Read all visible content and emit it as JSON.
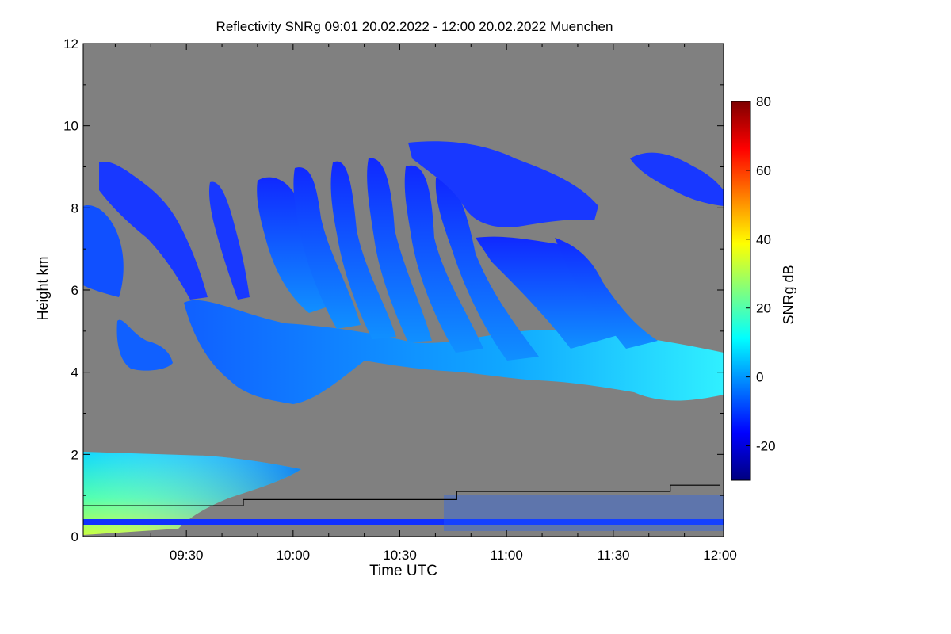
{
  "chart_data": {
    "type": "heatmap",
    "title": "Reflectivity SNRg   09:01 20.02.2022 - 12:00 20.02.2022 Muenchen",
    "xlabel": "Time UTC",
    "ylabel": "Height km",
    "colorbar_label": "SNRg dB",
    "xlim": [
      "09:01",
      "12:01"
    ],
    "ylim": [
      0,
      12
    ],
    "x_ticks": [
      "09:30",
      "10:00",
      "10:30",
      "11:00",
      "11:30",
      "12:00"
    ],
    "y_ticks": [
      0,
      2,
      4,
      6,
      8,
      10,
      12
    ],
    "colorbar_range": [
      -30,
      80
    ],
    "colorbar_ticks": [
      80,
      60,
      40,
      20,
      0,
      -20
    ],
    "background_color": "#808080",
    "colormap": [
      "#00007f",
      "#0000ff",
      "#007fff",
      "#00ffff",
      "#7fff7f",
      "#ffff00",
      "#ff7f00",
      "#ff0000",
      "#7f0000"
    ],
    "regions": [
      {
        "name": "boundary-layer echo",
        "x": [
          "09:01",
          "10:05"
        ],
        "height": [
          0,
          2.1
        ],
        "snr_db": [
          0,
          40
        ]
      },
      {
        "name": "lower cloud layer",
        "x": [
          "09:30",
          "12:00"
        ],
        "height": [
          3.3,
          6.2
        ],
        "snr_db": [
          -25,
          10
        ]
      },
      {
        "name": "fall streaks",
        "x": [
          "09:55",
          "11:40"
        ],
        "height": [
          3.5,
          9.2
        ],
        "snr_db": [
          -25,
          5
        ]
      },
      {
        "name": "upper cloud",
        "x": [
          "11:30",
          "12:00"
        ],
        "height": [
          7.5,
          9.5
        ],
        "snr_db": [
          -25,
          -10
        ]
      },
      {
        "name": "near-surface band",
        "x": [
          "09:01",
          "12:00"
        ],
        "height": [
          0.2,
          0.4
        ],
        "snr_db": [
          -25,
          -10
        ]
      }
    ],
    "mixing_layer_height": {
      "times": [
        "09:01",
        "09:46",
        "09:46",
        "10:46",
        "10:46",
        "11:46",
        "11:46",
        "12:00"
      ],
      "height_km": [
        0.75,
        0.75,
        0.9,
        0.9,
        1.1,
        1.1,
        1.25,
        1.25
      ]
    }
  }
}
